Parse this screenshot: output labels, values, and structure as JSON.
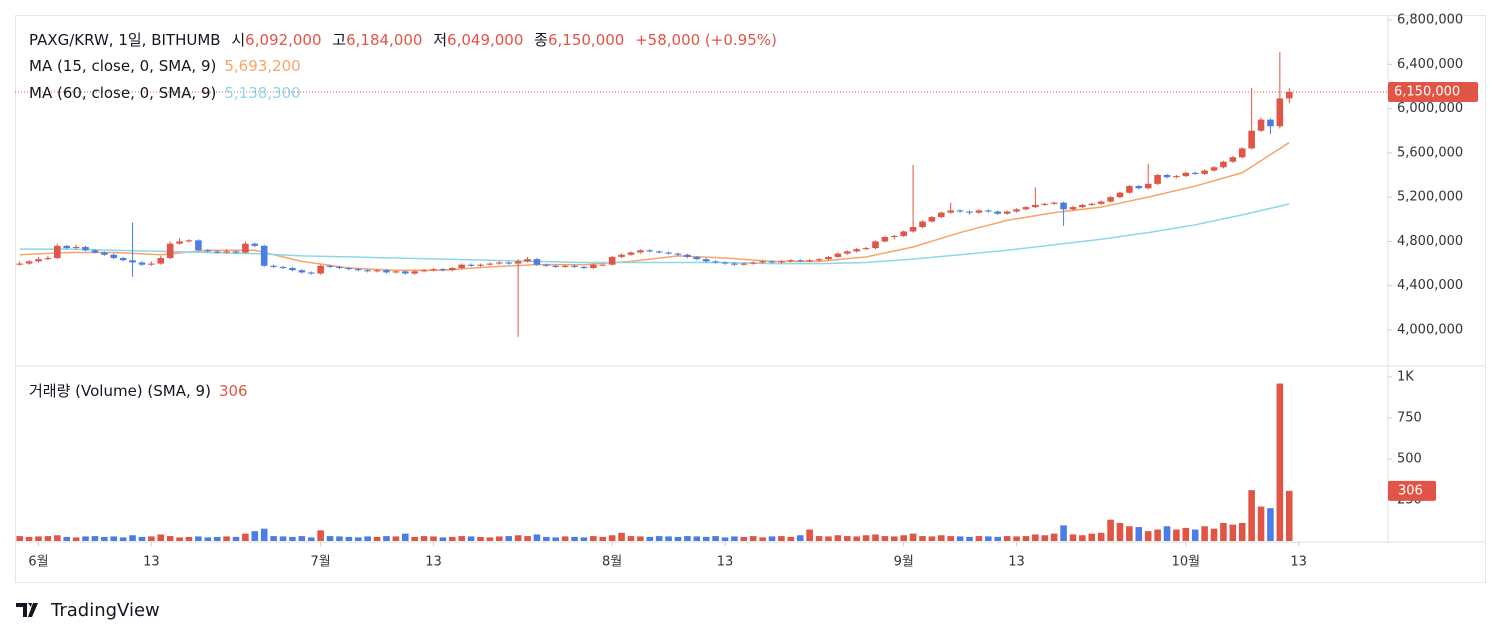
{
  "chart_data": {
    "type": "candlestick",
    "title": "PAXG/KRW, 1일, BITHUMB",
    "ohlc_legend": [
      {
        "label": "시",
        "text": "6,092,000"
      },
      {
        "label": "고",
        "text": "6,184,000"
      },
      {
        "label": "저",
        "text": "6,049,000"
      },
      {
        "label": "종",
        "text": "6,150,000"
      }
    ],
    "change": "+58,000 (+0.95%)",
    "up_color": "#e05545",
    "down_color": "#4a7ee6",
    "candles": [
      [
        4590000,
        4620000,
        4580000,
        4600000
      ],
      [
        4600000,
        4630000,
        4590000,
        4620000
      ],
      [
        4620000,
        4660000,
        4610000,
        4640000
      ],
      [
        4640000,
        4670000,
        4630000,
        4650000
      ],
      [
        4650000,
        4780000,
        4640000,
        4760000
      ],
      [
        4760000,
        4770000,
        4730000,
        4740000
      ],
      [
        4740000,
        4770000,
        4730000,
        4750000
      ],
      [
        4750000,
        4760000,
        4710000,
        4720000
      ],
      [
        4720000,
        4730000,
        4690000,
        4700000
      ],
      [
        4700000,
        4710000,
        4670000,
        4680000
      ],
      [
        4680000,
        4690000,
        4640000,
        4650000
      ],
      [
        4650000,
        4660000,
        4620000,
        4630000
      ],
      [
        4630000,
        4970000,
        4480000,
        4610000
      ],
      [
        4610000,
        4620000,
        4580000,
        4590000
      ],
      [
        4590000,
        4620000,
        4580000,
        4600000
      ],
      [
        4600000,
        4670000,
        4590000,
        4650000
      ],
      [
        4650000,
        4800000,
        4640000,
        4780000
      ],
      [
        4780000,
        4830000,
        4770000,
        4800000
      ],
      [
        4800000,
        4820000,
        4790000,
        4810000
      ],
      [
        4810000,
        4820000,
        4710000,
        4720000
      ],
      [
        4720000,
        4730000,
        4700000,
        4710000
      ],
      [
        4710000,
        4720000,
        4690000,
        4700000
      ],
      [
        4700000,
        4730000,
        4690000,
        4710000
      ],
      [
        4710000,
        4720000,
        4690000,
        4700000
      ],
      [
        4700000,
        4800000,
        4690000,
        4780000
      ],
      [
        4780000,
        4790000,
        4750000,
        4760000
      ],
      [
        4760000,
        4770000,
        4570000,
        4580000
      ],
      [
        4580000,
        4590000,
        4560000,
        4570000
      ],
      [
        4570000,
        4580000,
        4550000,
        4560000
      ],
      [
        4560000,
        4570000,
        4530000,
        4540000
      ],
      [
        4540000,
        4550000,
        4510000,
        4520000
      ],
      [
        4520000,
        4530000,
        4500000,
        4510000
      ],
      [
        4510000,
        4590000,
        4500000,
        4580000
      ],
      [
        4580000,
        4590000,
        4560000,
        4570000
      ],
      [
        4570000,
        4580000,
        4550000,
        4560000
      ],
      [
        4560000,
        4570000,
        4540000,
        4550000
      ],
      [
        4550000,
        4560000,
        4530000,
        4540000
      ],
      [
        4540000,
        4550000,
        4520000,
        4530000
      ],
      [
        4530000,
        4550000,
        4520000,
        4540000
      ],
      [
        4540000,
        4550000,
        4510000,
        4520000
      ],
      [
        4520000,
        4540000,
        4510000,
        4530000
      ],
      [
        4530000,
        4540000,
        4500000,
        4510000
      ],
      [
        4510000,
        4540000,
        4500000,
        4530000
      ],
      [
        4530000,
        4550000,
        4520000,
        4540000
      ],
      [
        4540000,
        4560000,
        4530000,
        4550000
      ],
      [
        4550000,
        4560000,
        4530000,
        4540000
      ],
      [
        4540000,
        4570000,
        4530000,
        4560000
      ],
      [
        4560000,
        4600000,
        4550000,
        4590000
      ],
      [
        4590000,
        4600000,
        4570000,
        4580000
      ],
      [
        4580000,
        4600000,
        4570000,
        4590000
      ],
      [
        4590000,
        4610000,
        4580000,
        4600000
      ],
      [
        4600000,
        4620000,
        4590000,
        4610000
      ],
      [
        4610000,
        4620000,
        4590000,
        4600000
      ],
      [
        4600000,
        4640000,
        3938000,
        4620000
      ],
      [
        4620000,
        4660000,
        4610000,
        4640000
      ],
      [
        4640000,
        4650000,
        4580000,
        4590000
      ],
      [
        4590000,
        4600000,
        4570000,
        4580000
      ],
      [
        4580000,
        4590000,
        4560000,
        4570000
      ],
      [
        4570000,
        4590000,
        4560000,
        4580000
      ],
      [
        4580000,
        4590000,
        4560000,
        4570000
      ],
      [
        4570000,
        4580000,
        4550000,
        4560000
      ],
      [
        4560000,
        4600000,
        4550000,
        4590000
      ],
      [
        4590000,
        4600000,
        4580000,
        4590000
      ],
      [
        4590000,
        4670000,
        4580000,
        4660000
      ],
      [
        4660000,
        4690000,
        4650000,
        4680000
      ],
      [
        4680000,
        4710000,
        4670000,
        4700000
      ],
      [
        4700000,
        4730000,
        4690000,
        4720000
      ],
      [
        4720000,
        4730000,
        4700000,
        4710000
      ],
      [
        4710000,
        4720000,
        4690000,
        4700000
      ],
      [
        4700000,
        4710000,
        4680000,
        4690000
      ],
      [
        4690000,
        4700000,
        4670000,
        4680000
      ],
      [
        4680000,
        4690000,
        4650000,
        4660000
      ],
      [
        4660000,
        4670000,
        4630000,
        4640000
      ],
      [
        4640000,
        4650000,
        4610000,
        4620000
      ],
      [
        4620000,
        4630000,
        4600000,
        4610000
      ],
      [
        4610000,
        4620000,
        4590000,
        4600000
      ],
      [
        4600000,
        4610000,
        4580000,
        4590000
      ],
      [
        4590000,
        4610000,
        4580000,
        4600000
      ],
      [
        4600000,
        4620000,
        4590000,
        4610000
      ],
      [
        4610000,
        4630000,
        4600000,
        4620000
      ],
      [
        4620000,
        4630000,
        4600000,
        4610000
      ],
      [
        4610000,
        4630000,
        4600000,
        4620000
      ],
      [
        4620000,
        4640000,
        4610000,
        4630000
      ],
      [
        4630000,
        4640000,
        4610000,
        4620000
      ],
      [
        4620000,
        4640000,
        4610000,
        4630000
      ],
      [
        4630000,
        4650000,
        4620000,
        4640000
      ],
      [
        4640000,
        4670000,
        4630000,
        4660000
      ],
      [
        4660000,
        4700000,
        4650000,
        4690000
      ],
      [
        4690000,
        4720000,
        4680000,
        4710000
      ],
      [
        4710000,
        4740000,
        4700000,
        4730000
      ],
      [
        4730000,
        4750000,
        4720000,
        4740000
      ],
      [
        4740000,
        4810000,
        4730000,
        4800000
      ],
      [
        4800000,
        4850000,
        4790000,
        4840000
      ],
      [
        4840000,
        4860000,
        4820000,
        4850000
      ],
      [
        4850000,
        4900000,
        4840000,
        4890000
      ],
      [
        4890000,
        5490000,
        4880000,
        4930000
      ],
      [
        4930000,
        4990000,
        4920000,
        4980000
      ],
      [
        4980000,
        5030000,
        4970000,
        5020000
      ],
      [
        5020000,
        5070000,
        5010000,
        5060000
      ],
      [
        5060000,
        5150000,
        5050000,
        5080000
      ],
      [
        5080000,
        5090000,
        5060000,
        5070000
      ],
      [
        5070000,
        5080000,
        5040000,
        5060000
      ],
      [
        5060000,
        5090000,
        5050000,
        5080000
      ],
      [
        5080000,
        5090000,
        5060000,
        5070000
      ],
      [
        5070000,
        5080000,
        5040000,
        5050000
      ],
      [
        5050000,
        5080000,
        5040000,
        5070000
      ],
      [
        5070000,
        5100000,
        5060000,
        5090000
      ],
      [
        5090000,
        5120000,
        5080000,
        5110000
      ],
      [
        5110000,
        5290000,
        5100000,
        5130000
      ],
      [
        5130000,
        5150000,
        5120000,
        5140000
      ],
      [
        5140000,
        5160000,
        5130000,
        5150000
      ],
      [
        5150000,
        5160000,
        4940000,
        5090000
      ],
      [
        5090000,
        5120000,
        5080000,
        5110000
      ],
      [
        5110000,
        5140000,
        5100000,
        5130000
      ],
      [
        5130000,
        5150000,
        5120000,
        5140000
      ],
      [
        5140000,
        5170000,
        5130000,
        5160000
      ],
      [
        5160000,
        5210000,
        5150000,
        5200000
      ],
      [
        5200000,
        5250000,
        5190000,
        5240000
      ],
      [
        5240000,
        5310000,
        5230000,
        5300000
      ],
      [
        5300000,
        5310000,
        5270000,
        5280000
      ],
      [
        5280000,
        5500000,
        5270000,
        5320000
      ],
      [
        5320000,
        5410000,
        5310000,
        5400000
      ],
      [
        5400000,
        5410000,
        5370000,
        5380000
      ],
      [
        5380000,
        5400000,
        5370000,
        5390000
      ],
      [
        5390000,
        5430000,
        5380000,
        5420000
      ],
      [
        5420000,
        5430000,
        5400000,
        5410000
      ],
      [
        5410000,
        5450000,
        5400000,
        5440000
      ],
      [
        5440000,
        5480000,
        5430000,
        5470000
      ],
      [
        5470000,
        5530000,
        5460000,
        5520000
      ],
      [
        5520000,
        5570000,
        5510000,
        5560000
      ],
      [
        5560000,
        5650000,
        5550000,
        5640000
      ],
      [
        5640000,
        6185000,
        5630000,
        5800000
      ],
      [
        5800000,
        5920000,
        5790000,
        5900000
      ],
      [
        5900000,
        5910000,
        5770000,
        5840000
      ],
      [
        5840000,
        6510000,
        5820000,
        6092000
      ],
      [
        6092000,
        6184000,
        6049000,
        6150000
      ]
    ],
    "series": [
      {
        "name": "MA (15, close, 0, SMA, 9)",
        "legend_value": "5,693,200",
        "color": "#f6a56a",
        "x": [
          0,
          5,
          10,
          15,
          20,
          25,
          30,
          35,
          40,
          45,
          50,
          55,
          60,
          65,
          70,
          75,
          80,
          85,
          90,
          95,
          100,
          105,
          110,
          115,
          120,
          125,
          130,
          135
        ],
        "values": [
          4680000,
          4700000,
          4700000,
          4680000,
          4720000,
          4720000,
          4620000,
          4560000,
          4540000,
          4540000,
          4570000,
          4590000,
          4590000,
          4620000,
          4670000,
          4650000,
          4620000,
          4620000,
          4660000,
          4750000,
          4880000,
          4990000,
          5060000,
          5110000,
          5200000,
          5300000,
          5420000,
          5693200
        ]
      },
      {
        "name": "MA (60, close, 0, SMA, 9)",
        "legend_value": "5,138,300",
        "color": "#8dd7e8",
        "x": [
          0,
          5,
          10,
          15,
          20,
          25,
          30,
          35,
          40,
          45,
          50,
          55,
          60,
          65,
          70,
          75,
          80,
          85,
          90,
          95,
          100,
          105,
          110,
          115,
          120,
          125,
          130,
          135
        ],
        "values": [
          4730000,
          4730000,
          4720000,
          4710000,
          4700000,
          4690000,
          4670000,
          4660000,
          4650000,
          4640000,
          4630000,
          4620000,
          4610000,
          4610000,
          4610000,
          4610000,
          4600000,
          4600000,
          4610000,
          4640000,
          4680000,
          4720000,
          4770000,
          4820000,
          4880000,
          4950000,
          5040000,
          5138300
        ]
      }
    ],
    "last_price": {
      "value": 6150000,
      "label": "6,150,000"
    },
    "ylim": [
      3675000,
      6845000
    ],
    "yticks": [
      {
        "value": 4000000,
        "label": "4,000,000"
      },
      {
        "value": 4400000,
        "label": "4,400,000"
      },
      {
        "value": 4800000,
        "label": "4,800,000"
      },
      {
        "value": 5200000,
        "label": "5,200,000"
      },
      {
        "value": 5600000,
        "label": "5,600,000"
      },
      {
        "value": 6000000,
        "label": "6,000,000"
      },
      {
        "value": 6400000,
        "label": "6,400,000"
      },
      {
        "value": 6800000,
        "label": "6,800,000"
      }
    ],
    "xlim": [
      -0.5,
      145.5
    ],
    "xticks": [
      {
        "value": 2,
        "label": "6월"
      },
      {
        "value": 14,
        "label": "13"
      },
      {
        "value": 32,
        "label": "7월"
      },
      {
        "value": 44,
        "label": "13"
      },
      {
        "value": 63,
        "label": "8월"
      },
      {
        "value": 75,
        "label": "13"
      },
      {
        "value": 94,
        "label": "9월"
      },
      {
        "value": 106,
        "label": "13"
      },
      {
        "value": 124,
        "label": "10월"
      },
      {
        "value": 136,
        "label": "13"
      }
    ],
    "volume": {
      "title": "거래량 (Volume) (SMA, 9)",
      "last": {
        "value": 306,
        "label": "306"
      },
      "values": [
        30,
        25,
        28,
        30,
        35,
        25,
        22,
        28,
        30,
        25,
        28,
        22,
        35,
        25,
        28,
        40,
        30,
        22,
        25,
        28,
        22,
        25,
        28,
        25,
        45,
        60,
        75,
        30,
        28,
        25,
        30,
        22,
        65,
        30,
        28,
        25,
        22,
        28,
        25,
        30,
        28,
        45,
        25,
        30,
        28,
        22,
        25,
        30,
        28,
        25,
        22,
        28,
        30,
        35,
        30,
        40,
        25,
        22,
        28,
        25,
        22,
        30,
        25,
        35,
        50,
        30,
        28,
        25,
        30,
        28,
        25,
        30,
        28,
        25,
        30,
        22,
        28,
        25,
        30,
        22,
        28,
        30,
        25,
        35,
        70,
        30,
        28,
        35,
        30,
        28,
        35,
        40,
        30,
        28,
        35,
        45,
        30,
        28,
        35,
        30,
        28,
        25,
        30,
        28,
        25,
        30,
        28,
        30,
        40,
        35,
        45,
        95,
        40,
        35,
        45,
        50,
        130,
        110,
        90,
        85,
        60,
        70,
        90,
        70,
        80,
        70,
        90,
        75,
        110,
        100,
        110,
        310,
        210,
        200,
        960,
        306
      ],
      "ylim": [
        0,
        1067
      ],
      "yticks": [
        {
          "value": 250,
          "label": "250"
        },
        {
          "value": 500,
          "label": "500"
        },
        {
          "value": 750,
          "label": "750"
        },
        {
          "value": 1000,
          "label": "1K"
        }
      ]
    }
  },
  "footer": {
    "brand": "TradingView"
  }
}
